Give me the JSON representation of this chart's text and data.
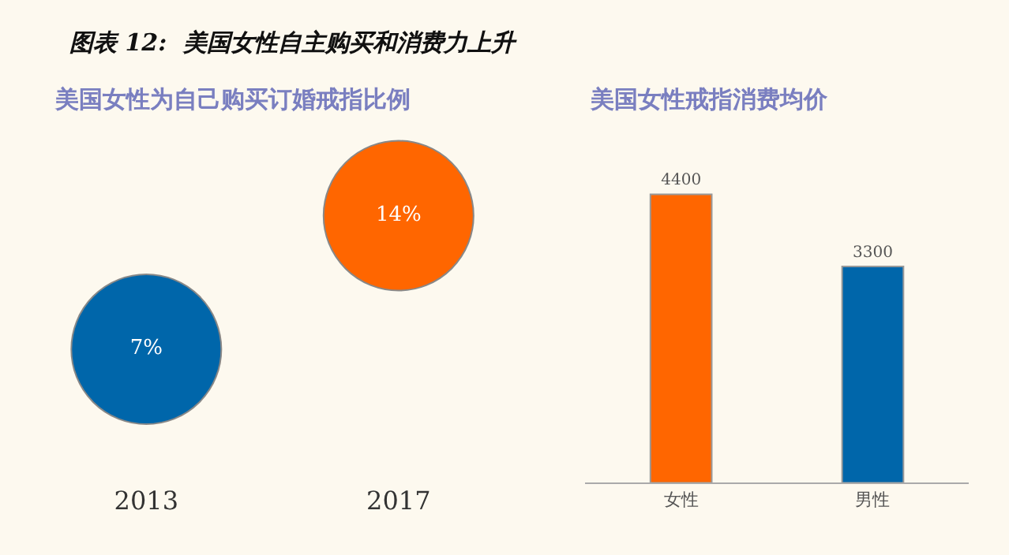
{
  "chart_data": [
    {
      "type": "other",
      "title": "图表 12:  美国女性自主购买和消费力上升",
      "subtitle": "美国女性为自己购买订婚戒指比例",
      "categories": [
        "2013",
        "2017"
      ],
      "values": [
        7,
        14
      ],
      "colors": [
        "#0066aa",
        "#ff6600"
      ],
      "value_labels": [
        "7%",
        "14%"
      ]
    },
    {
      "type": "bar",
      "title": "美国女性戒指消费均价",
      "categories": [
        "女性",
        "男性"
      ],
      "values": [
        4400,
        3300
      ],
      "colors": [
        "#ff6600",
        "#0066aa"
      ],
      "data_labels": true,
      "tick_labels": "x"
    }
  ]
}
